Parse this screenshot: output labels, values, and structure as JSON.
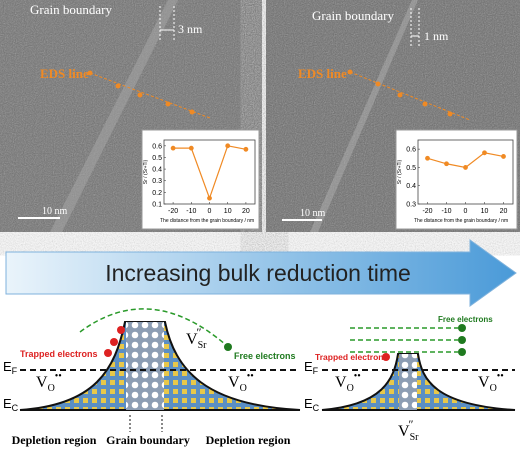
{
  "panels": [
    {
      "grain_boundary": "Grain boundary",
      "width": "3 nm",
      "eds": "EDS line",
      "scale": "10 nm",
      "inset": {
        "type": "line",
        "y_label": "Sr / (Sr+Ti)",
        "x_label": "The distance from the grain boundary / nm",
        "x": [
          -20,
          -10,
          0,
          10,
          20
        ],
        "values": [
          0.58,
          0.58,
          0.15,
          0.6,
          0.57
        ],
        "color": "#f08a24",
        "xlim": [
          -25,
          25
        ],
        "xticks": [
          -20,
          -10,
          0,
          10,
          20
        ],
        "ylim": [
          0.1,
          0.65
        ],
        "yticks": [
          0.1,
          0.2,
          0.3,
          0.4,
          0.5,
          0.6
        ]
      }
    },
    {
      "grain_boundary": "Grain boundary",
      "width": "1 nm",
      "eds": "EDS line",
      "scale": "10 nm",
      "inset": {
        "type": "line",
        "y_label": "Sr / (Sr+Ti)",
        "x_label": "The distance from the grain boundary / nm",
        "x": [
          -20,
          -10,
          0,
          10,
          20
        ],
        "values": [
          0.55,
          0.52,
          0.5,
          0.58,
          0.56
        ],
        "color": "#f08a24",
        "xlim": [
          -25,
          25
        ],
        "xticks": [
          -20,
          -10,
          0,
          10,
          20
        ],
        "ylim": [
          0.3,
          0.65
        ],
        "yticks": [
          0.3,
          0.4,
          0.5,
          0.6
        ]
      }
    }
  ],
  "arrow": "Increasing bulk reduction time",
  "labels": {
    "trapped": "Trapped electrons",
    "free": "Free electrons",
    "ef": {
      "base": "E",
      "sub": "F"
    },
    "ec": {
      "base": "E",
      "sub": "C"
    },
    "vsr": {
      "base": "V",
      "sub": "Sr",
      "sup": "″"
    },
    "vo": {
      "base": "V",
      "sub": "O",
      "sup": "••"
    }
  },
  "regions": [
    "Depletion region",
    "Grain boundary",
    "Depletion region"
  ]
}
